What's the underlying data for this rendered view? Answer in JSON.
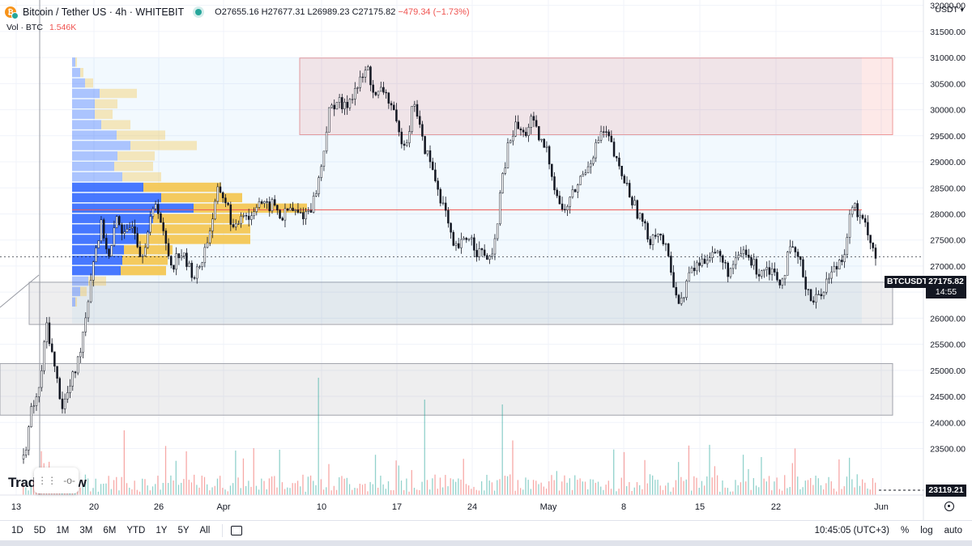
{
  "header": {
    "symbol": "Bitcoin / Tether US · 4h · WHITEBIT",
    "open": "O27655.16",
    "high": "H27677.31",
    "low": "L26989.23",
    "close": "C27175.82",
    "change": "−479.34 (−1.73%)",
    "volume_label": "Vol · BTC",
    "volume_value": "1.546K",
    "currency": "USDT"
  },
  "price_badge": {
    "ticker": "BTCUSDT",
    "price": "27175.82",
    "countdown": "14:55"
  },
  "low_badge": "23119.21",
  "footer": {
    "ranges": [
      "1D",
      "5D",
      "1M",
      "3M",
      "6M",
      "YTD",
      "1Y",
      "5Y",
      "All"
    ],
    "time": "10:45:05 (UTC+3)",
    "percent": "%",
    "log": "log",
    "auto": "auto"
  },
  "watermark": "TradingView",
  "colors": {
    "up": "#26a69a",
    "down": "#ef5350",
    "resistance": "#ef5350",
    "support": "#b2b5be",
    "poc": "#2962ff",
    "value_area": "#f5c242"
  },
  "chart_data": {
    "type": "candlestick",
    "y_axis_ticks": [
      23500,
      24000,
      24500,
      25000,
      25500,
      26000,
      26500,
      27000,
      27500,
      28000,
      28500,
      29000,
      29500,
      30000,
      30500,
      31000,
      31500,
      32000
    ],
    "y_axis_labels": [
      "23500.00",
      "24000.00",
      "24500.00",
      "25000.00",
      "25500.00",
      "26000.00",
      "26500.00",
      "27000.00",
      "27500.00",
      "28000.00",
      "28500.00",
      "29000.00",
      "29500.00",
      "30000.00",
      "30500.00",
      "31000.00",
      "31500.00",
      "32000.00"
    ],
    "ylim": [
      23119,
      32300
    ],
    "x_axis_labels": [
      "13",
      "20",
      "26",
      "Apr",
      "10",
      "17",
      "24",
      "May",
      "8",
      "15",
      "22",
      "Jun"
    ],
    "last_price": 27175.82,
    "horizontal_line": 28080,
    "zones": [
      {
        "name": "resistance",
        "from": 29520,
        "to": 30990
      },
      {
        "name": "support-1",
        "from": 25880,
        "to": 26690
      },
      {
        "name": "support-2",
        "from": 24140,
        "to": 25130
      }
    ],
    "price_path": [
      [
        0,
        23300
      ],
      [
        1,
        24200
      ],
      [
        2,
        24600
      ],
      [
        3,
        25900
      ],
      [
        4,
        25000
      ],
      [
        5,
        24300
      ],
      [
        6,
        24700
      ],
      [
        7,
        25200
      ],
      [
        8,
        26100
      ],
      [
        9,
        27200
      ],
      [
        10,
        27800
      ],
      [
        11,
        27100
      ],
      [
        12,
        28000
      ],
      [
        13,
        27500
      ],
      [
        14,
        27900
      ],
      [
        15,
        27200
      ],
      [
        16,
        27700
      ],
      [
        17,
        28300
      ],
      [
        18,
        27500
      ],
      [
        19,
        27000
      ],
      [
        20,
        27300
      ],
      [
        21,
        27000
      ],
      [
        22,
        26800
      ],
      [
        23,
        27200
      ],
      [
        24,
        27800
      ],
      [
        25,
        28500
      ],
      [
        26,
        28200
      ],
      [
        27,
        27600
      ],
      [
        28,
        28100
      ],
      [
        29,
        27900
      ],
      [
        30,
        28300
      ],
      [
        31,
        28100
      ],
      [
        32,
        28200
      ],
      [
        33,
        27900
      ],
      [
        34,
        28100
      ],
      [
        35,
        28000
      ],
      [
        36,
        28000
      ],
      [
        37,
        28200
      ],
      [
        38,
        28800
      ],
      [
        39,
        29900
      ],
      [
        40,
        30200
      ],
      [
        41,
        30000
      ],
      [
        42,
        30300
      ],
      [
        43,
        30500
      ],
      [
        44,
        30800
      ],
      [
        45,
        30200
      ],
      [
        46,
        30400
      ],
      [
        47,
        30100
      ],
      [
        48,
        29500
      ],
      [
        49,
        29400
      ],
      [
        50,
        30200
      ],
      [
        51,
        29400
      ],
      [
        52,
        29000
      ],
      [
        53,
        28500
      ],
      [
        54,
        28000
      ],
      [
        55,
        27300
      ],
      [
        56,
        27400
      ],
      [
        57,
        27600
      ],
      [
        58,
        27300
      ],
      [
        59,
        27200
      ],
      [
        60,
        27100
      ],
      [
        61,
        28400
      ],
      [
        62,
        29300
      ],
      [
        63,
        29700
      ],
      [
        64,
        29500
      ],
      [
        65,
        29800
      ],
      [
        66,
        29400
      ],
      [
        67,
        29200
      ],
      [
        68,
        28500
      ],
      [
        69,
        28000
      ],
      [
        70,
        28300
      ],
      [
        71,
        28600
      ],
      [
        72,
        28900
      ],
      [
        73,
        29200
      ],
      [
        74,
        29600
      ],
      [
        75,
        29400
      ],
      [
        76,
        28900
      ],
      [
        77,
        28600
      ],
      [
        78,
        28200
      ],
      [
        79,
        27900
      ],
      [
        80,
        27500
      ],
      [
        81,
        27700
      ],
      [
        82,
        27400
      ],
      [
        83,
        26800
      ],
      [
        84,
        26200
      ],
      [
        85,
        26800
      ],
      [
        86,
        27000
      ],
      [
        87,
        27100
      ],
      [
        88,
        27300
      ],
      [
        89,
        27200
      ],
      [
        90,
        26900
      ],
      [
        91,
        27000
      ],
      [
        92,
        27300
      ],
      [
        93,
        27100
      ],
      [
        94,
        26900
      ],
      [
        95,
        27000
      ],
      [
        96,
        26900
      ],
      [
        97,
        26700
      ],
      [
        98,
        27300
      ],
      [
        99,
        27200
      ],
      [
        100,
        26700
      ],
      [
        101,
        26300
      ],
      [
        102,
        26500
      ],
      [
        103,
        26800
      ],
      [
        104,
        27000
      ],
      [
        105,
        27300
      ],
      [
        106,
        28200
      ],
      [
        107,
        27900
      ],
      [
        108,
        27700
      ],
      [
        109,
        27175
      ]
    ],
    "volume_profile": [
      {
        "price": 30900,
        "buy": 4,
        "sell": 2
      },
      {
        "price": 30700,
        "buy": 10,
        "sell": 4
      },
      {
        "price": 30500,
        "buy": 16,
        "sell": 10
      },
      {
        "price": 30300,
        "buy": 34,
        "sell": 46
      },
      {
        "price": 30100,
        "buy": 28,
        "sell": 28
      },
      {
        "price": 29900,
        "buy": 28,
        "sell": 22
      },
      {
        "price": 29700,
        "buy": 36,
        "sell": 36
      },
      {
        "price": 29500,
        "buy": 55,
        "sell": 60
      },
      {
        "price": 29300,
        "buy": 72,
        "sell": 82
      },
      {
        "price": 29100,
        "buy": 56,
        "sell": 46
      },
      {
        "price": 28900,
        "buy": 52,
        "sell": 48
      },
      {
        "price": 28700,
        "buy": 62,
        "sell": 48
      },
      {
        "price": 28500,
        "buy": 88,
        "sell": 96
      },
      {
        "price": 28300,
        "buy": 110,
        "sell": 100
      },
      {
        "price": 28100,
        "buy": 150,
        "sell": 140
      },
      {
        "price": 27900,
        "buy": 100,
        "sell": 112
      },
      {
        "price": 27700,
        "buy": 96,
        "sell": 124
      },
      {
        "price": 27500,
        "buy": 80,
        "sell": 140
      },
      {
        "price": 27300,
        "buy": 64,
        "sell": 60
      },
      {
        "price": 27100,
        "buy": 62,
        "sell": 56
      },
      {
        "price": 26900,
        "buy": 60,
        "sell": 56
      },
      {
        "price": 26700,
        "buy": 20,
        "sell": 22
      },
      {
        "price": 26500,
        "buy": 10,
        "sell": 8
      },
      {
        "price": 26300,
        "buy": 4,
        "sell": 2
      }
    ]
  }
}
